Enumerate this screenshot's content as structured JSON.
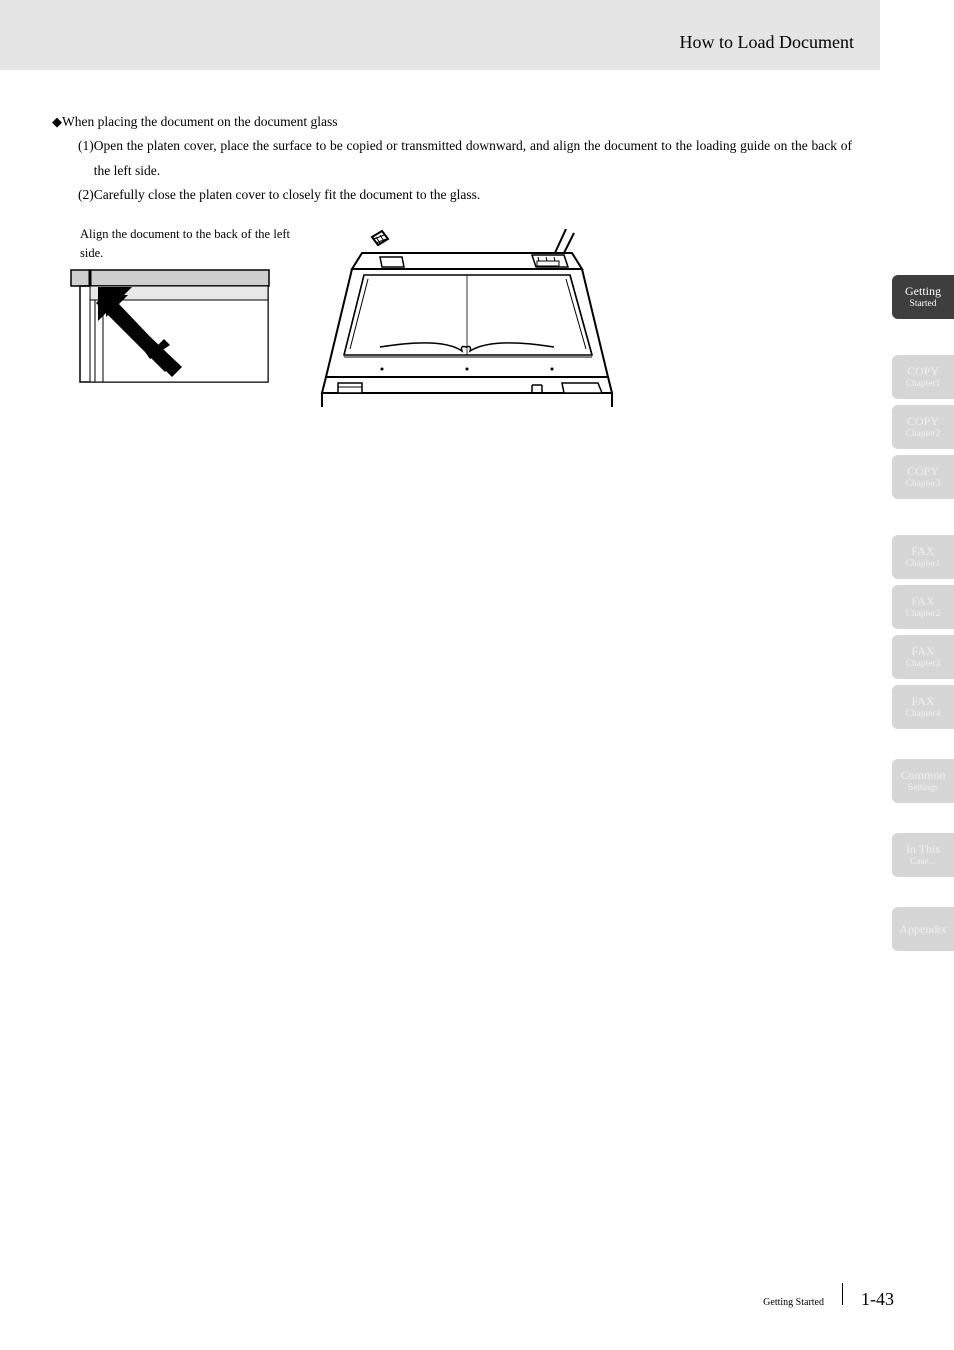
{
  "header": {
    "title": "How to Load Document"
  },
  "body": {
    "bullet": "When placing the document on the document glass",
    "items": [
      {
        "num": "(1)",
        "text": "Open the platen cover, place the surface to be copied or transmitted downward, and align the document to the loading guide on the back of the left side."
      },
      {
        "num": "(2)",
        "text": "Carefully close the platen cover to closely fit the document to the glass."
      }
    ],
    "caption": "Align the document to the back of the left side."
  },
  "sidebar_groups": [
    {
      "tabs": [
        {
          "row1": "Getting",
          "row2": "Started",
          "bg": "#3e3e3e",
          "fg": "#ffffff"
        }
      ]
    },
    {
      "tabs": [
        {
          "row1": "COPY",
          "row2": "Chapter1",
          "bg": "#d6d6d6",
          "fg": "#f0f0f0"
        },
        {
          "row1": "COPY",
          "row2": "Chapter2",
          "bg": "#d6d6d6",
          "fg": "#f0f0f0"
        },
        {
          "row1": "COPY",
          "row2": "Chapter3",
          "bg": "#d6d6d6",
          "fg": "#f0f0f0"
        }
      ]
    },
    {
      "tabs": [
        {
          "row1": "FAX",
          "row2": "Chapter1",
          "bg": "#d6d6d6",
          "fg": "#f0f0f0"
        },
        {
          "row1": "FAX",
          "row2": "Chapter2",
          "bg": "#d6d6d6",
          "fg": "#f0f0f0"
        },
        {
          "row1": "FAX",
          "row2": "Chapter3",
          "bg": "#d6d6d6",
          "fg": "#f0f0f0"
        },
        {
          "row1": "FAX",
          "row2": "Chapter4",
          "bg": "#d6d6d6",
          "fg": "#f0f0f0"
        }
      ]
    },
    {
      "tabs": [
        {
          "row1": "Common",
          "row2": "Settings",
          "bg": "#d6d6d6",
          "fg": "#f0f0f0"
        }
      ]
    },
    {
      "tabs": [
        {
          "row1": "In This",
          "row2": "Case...",
          "bg": "#d6d6d6",
          "fg": "#f0f0f0"
        }
      ]
    },
    {
      "tabs": [
        {
          "row1": "Appendix",
          "row2": "",
          "bg": "#d6d6d6",
          "fg": "#f0f0f0"
        }
      ]
    }
  ],
  "footer": {
    "section": "Getting Started",
    "page": "1-43"
  },
  "diagram": {
    "left": {
      "stroke": "#000000",
      "fill_bg": "#ffffff",
      "arrow_fill": "#000000"
    },
    "right": {
      "stroke": "#000000",
      "fill_bg": "#ffffff"
    }
  }
}
